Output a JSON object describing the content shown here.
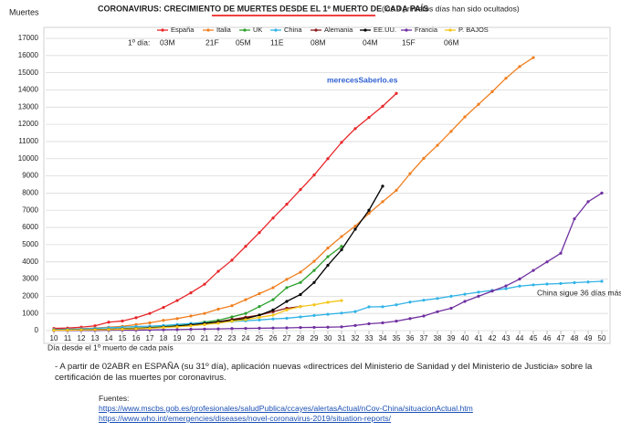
{
  "chart_data": {
    "type": "line",
    "title": "CORONAVIRUS: CRECIMIENTO DE MUERTES DESDE EL 1º MUERTO DE CADA PAÍS",
    "subtitle": "(los 9 primeros días han sido ocultados)",
    "y_label": "Muertes",
    "x_label": "Día desde el 1º muerto de cada país",
    "first_day_label": "1º día:",
    "annotations": [
      "merecesSaberlo.es",
      "China sigue 36 días más"
    ],
    "x": [
      10,
      11,
      12,
      13,
      14,
      15,
      16,
      17,
      18,
      19,
      20,
      21,
      22,
      23,
      24,
      25,
      26,
      27,
      28,
      29,
      30,
      31,
      32,
      33,
      34,
      35,
      36,
      37,
      38,
      39,
      40,
      41,
      42,
      43,
      44,
      45,
      46,
      47,
      48,
      49,
      50
    ],
    "xlim": [
      10,
      50
    ],
    "xticks": [
      10,
      11,
      12,
      13,
      14,
      15,
      16,
      17,
      18,
      19,
      20,
      21,
      22,
      23,
      24,
      25,
      26,
      27,
      28,
      29,
      30,
      31,
      32,
      33,
      34,
      35,
      36,
      37,
      38,
      39,
      40,
      41,
      42,
      43,
      44,
      45,
      46,
      47,
      48,
      49,
      50
    ],
    "ylim": [
      0,
      17000
    ],
    "yticks": [
      0,
      1000,
      2000,
      3000,
      4000,
      5000,
      6000,
      7000,
      8000,
      9000,
      10000,
      11000,
      12000,
      13000,
      14000,
      15000,
      16000,
      17000
    ],
    "grid": true,
    "series": [
      {
        "name": "España",
        "color": "#e8262a",
        "first_day": "03M",
        "values": [
          130,
          150,
          200,
          280,
          490,
          560,
          750,
          1000,
          1350,
          1750,
          2200,
          2700,
          3450,
          4100,
          4900,
          5700,
          6550,
          7350,
          8200,
          9050,
          10000,
          10950,
          11750,
          12400,
          13050,
          13800,
          null,
          null,
          null,
          null,
          null,
          null,
          null,
          null,
          null,
          null,
          null,
          null,
          null,
          null,
          null
        ]
      },
      {
        "name": "Italia",
        "color": "#f07f1f",
        "first_day": "21F",
        "values": [
          60,
          80,
          110,
          150,
          200,
          250,
          350,
          450,
          600,
          700,
          850,
          1000,
          1250,
          1450,
          1800,
          2150,
          2500,
          2980,
          3400,
          4030,
          4800,
          5470,
          6080,
          6820,
          7500,
          8160,
          9130,
          10020,
          10780,
          11590,
          12430,
          13160,
          13900,
          14680,
          15360,
          15880,
          null,
          null,
          null,
          null,
          null
        ]
      },
      {
        "name": "UK",
        "color": "#2ca02c",
        "first_day": "05M",
        "values": [
          20,
          30,
          50,
          60,
          80,
          110,
          150,
          180,
          240,
          300,
          400,
          500,
          600,
          800,
          1000,
          1400,
          1800,
          2500,
          2800,
          3500,
          4300,
          4900,
          null,
          null,
          null,
          null,
          null,
          null,
          null,
          null,
          null,
          null,
          null,
          null,
          null,
          null,
          null,
          null,
          null,
          null,
          null
        ]
      },
      {
        "name": "China",
        "color": "#33b3e6",
        "first_day": "11E",
        "values": [
          60,
          80,
          100,
          130,
          170,
          200,
          240,
          260,
          300,
          360,
          420,
          460,
          490,
          530,
          570,
          620,
          680,
          720,
          800,
          880,
          950,
          1020,
          1110,
          1380,
          1390,
          1500,
          1660,
          1770,
          1870,
          2000,
          2120,
          2240,
          2340,
          2440,
          2590,
          2660,
          2710,
          2740,
          2790,
          2830,
          2870
        ]
      },
      {
        "name": "Alemania",
        "color": "#8b1c1c",
        "first_day": "08M",
        "values": [
          10,
          20,
          30,
          50,
          70,
          90,
          120,
          160,
          200,
          260,
          330,
          420,
          520,
          650,
          780,
          900,
          1100,
          1300,
          1400,
          null,
          null,
          null,
          null,
          null,
          null,
          null,
          null,
          null,
          null,
          null,
          null,
          null,
          null,
          null,
          null,
          null,
          null,
          null,
          null,
          null,
          null
        ]
      },
      {
        "name": "EE.UU.",
        "color": "#000000",
        "first_day": "04M",
        "values": [
          30,
          40,
          50,
          60,
          70,
          90,
          100,
          150,
          200,
          260,
          340,
          420,
          500,
          600,
          700,
          900,
          1200,
          1700,
          2100,
          2800,
          3800,
          4700,
          5900,
          7000,
          8400,
          null,
          null,
          null,
          null,
          null,
          null,
          null,
          null,
          null,
          null,
          null,
          null,
          null,
          null,
          null,
          null
        ]
      },
      {
        "name": "Francia",
        "color": "#7030a0",
        "first_day": "15F",
        "values": [
          5,
          10,
          10,
          10,
          20,
          30,
          30,
          40,
          50,
          60,
          80,
          90,
          100,
          120,
          130,
          140,
          150,
          160,
          180,
          190,
          200,
          220,
          300,
          400,
          450,
          550,
          700,
          850,
          1100,
          1300,
          1700,
          2000,
          2300,
          2600,
          3000,
          3500,
          4000,
          4500,
          6500,
          7500,
          8000
        ]
      },
      {
        "name": "P. BAJOS",
        "color": "#f5c518",
        "first_day": "06M",
        "values": [
          20,
          30,
          40,
          50,
          60,
          80,
          100,
          130,
          180,
          220,
          280,
          350,
          430,
          550,
          640,
          770,
          900,
          1200,
          1400,
          1500,
          1650,
          1750,
          null,
          null,
          null,
          null,
          null,
          null,
          null,
          null,
          null,
          null,
          null,
          null,
          null,
          null,
          null,
          null,
          null,
          null,
          null
        ]
      }
    ]
  },
  "note": "- A partir de 02ABR en ESPAÑA (su 31º día), aplicación nuevas «directrices del Ministerio de Sanidad y del Ministerio de Justicia» sobre la certificación de las muertes por coronavirus.",
  "sources": {
    "label": "Fuentes:",
    "links": [
      "https://www.mscbs.gob.es/profesionales/saludPublica/ccayes/alertasActual/nCov-China/situacionActual.htm",
      "https://www.who.int/emergencies/diseases/novel-coronavirus-2019/situation-reports/"
    ]
  }
}
